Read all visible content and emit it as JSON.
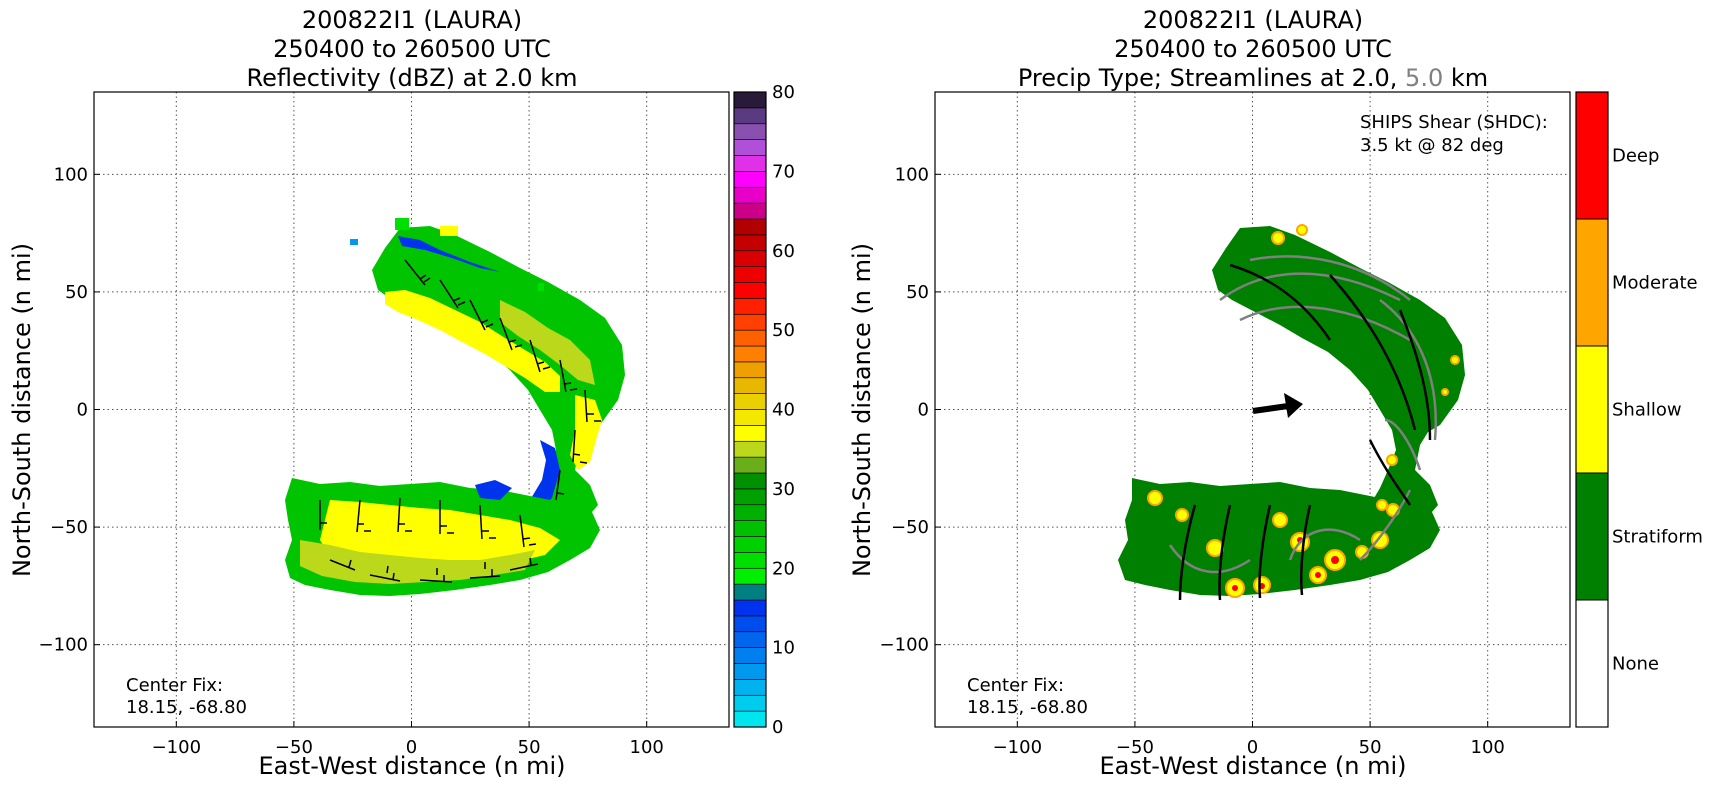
{
  "chart_data": [
    {
      "type": "heatmap",
      "title_lines": [
        "200822I1 (LAURA)",
        "250400 to 260500 UTC",
        "Reflectivity (dBZ) at 2.0 km"
      ],
      "xlabel": "East-West distance (n mi)",
      "ylabel": "North-South distance (n mi)",
      "xlim": [
        -135,
        135
      ],
      "ylim": [
        -135,
        135
      ],
      "xticks": [
        -100,
        -50,
        0,
        50,
        100
      ],
      "yticks": [
        -100,
        -50,
        0,
        50,
        100
      ],
      "grid": true,
      "annotation_lines": [
        "Center Fix:",
        "18.15, -68.80"
      ],
      "colorbar": {
        "min": 0,
        "max": 80,
        "ticks": [
          0,
          10,
          20,
          30,
          40,
          50,
          60,
          70,
          80
        ],
        "colors": [
          "#00e5ee",
          "#00ccee",
          "#00b2ee",
          "#0099ee",
          "#0080ee",
          "#0066ee",
          "#004ded",
          "#0033ee",
          "#008080",
          "#00ee00",
          "#00e000",
          "#00d000",
          "#00c000",
          "#00b000",
          "#00a000",
          "#009000",
          "#6aae1a",
          "#bcd81a",
          "#ffff00",
          "#f4e800",
          "#ead000",
          "#e8b800",
          "#eea000",
          "#ff8000",
          "#ff6000",
          "#ff4000",
          "#ff2000",
          "#ff0000",
          "#ee0000",
          "#d80000",
          "#c40000",
          "#b00000",
          "#cc0088",
          "#e800c8",
          "#ff00ff",
          "#e030e8",
          "#b050d8",
          "#8a50b0",
          "#5a3a80",
          "#2a1a3a"
        ]
      },
      "features": [
        {
          "name": "northwest band",
          "x": [
            -10,
            5,
            20,
            35,
            50,
            65,
            80,
            88
          ],
          "y": [
            52,
            55,
            48,
            40,
            34,
            28,
            22,
            10
          ]
        },
        {
          "name": "eastern band",
          "x": [
            88,
            82,
            75,
            70,
            64,
            60
          ],
          "y": [
            10,
            -5,
            -20,
            -35,
            -50,
            -60
          ]
        },
        {
          "name": "southern band",
          "x": [
            -55,
            -40,
            -20,
            0,
            20,
            40,
            60
          ],
          "y": [
            -45,
            -40,
            -38,
            -37,
            -40,
            -45,
            -55
          ]
        }
      ]
    },
    {
      "type": "heatmap",
      "title_lines": [
        "200822I1 (LAURA)",
        "250400 to 260500 UTC"
      ],
      "title_line3_parts": [
        "Precip Type; Streamlines at 2.0, ",
        "5.0",
        " km"
      ],
      "title_line3_colors": [
        "#000000",
        "#808080",
        "#000000"
      ],
      "xlabel": "East-West distance (n mi)",
      "ylabel": "North-South distance (n mi)",
      "xlim": [
        -135,
        135
      ],
      "ylim": [
        -135,
        135
      ],
      "xticks": [
        -100,
        -50,
        0,
        50,
        100
      ],
      "yticks": [
        -100,
        -50,
        0,
        50,
        100
      ],
      "grid": true,
      "annotation_lines": [
        "Center Fix:",
        "18.15, -68.80"
      ],
      "shear_lines": [
        "SHIPS Shear (SHDC):",
        "3.5 kt @ 82 deg"
      ],
      "shear_vector": {
        "speed_kt": 3.5,
        "direction_deg": 82
      },
      "categories": [
        "None",
        "Stratiform",
        "Shallow",
        "Moderate",
        "Deep"
      ],
      "category_colors": [
        "#ffffff",
        "#008000",
        "#ffff00",
        "#ffa500",
        "#ff0000"
      ],
      "streamlines": {
        "levels_km": [
          2.0,
          5.0
        ],
        "colors": [
          "#000000",
          "#808080"
        ]
      }
    }
  ]
}
